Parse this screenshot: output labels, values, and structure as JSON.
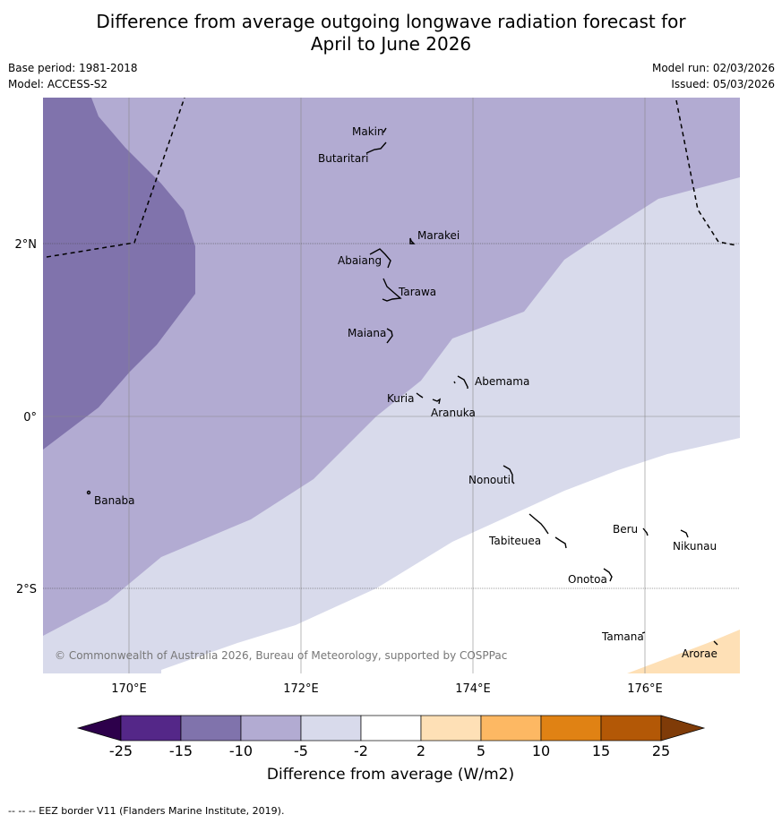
{
  "title_line1": "Difference from average outgoing longwave radiation forecast for",
  "title_line2": "April to June 2026",
  "meta": {
    "base_period": "Base period: 1981-2018",
    "model": "Model: ACCESS-S2",
    "model_run": "Model run: 02/03/2026",
    "issued": "Issued: 05/03/2026"
  },
  "map": {
    "lon_ticks": [
      "170°E",
      "172°E",
      "174°E",
      "176°E"
    ],
    "lat_ticks": [
      "2°N",
      "0°",
      "2°S"
    ],
    "places": [
      "Makin",
      "Butaritari",
      "Marakei",
      "Abaiang",
      "Tarawa",
      "Maiana",
      "Abemama",
      "Kuria",
      "Aranuka",
      "Banaba",
      "Nonouti",
      "Beru",
      "Nikunau",
      "Tabiteuea",
      "Onotoa",
      "Tamana",
      "Arorae"
    ],
    "copyright": "© Commonwealth of Australia 2026, Bureau of Meteorology, supported by COSPPac"
  },
  "colorbar": {
    "ticks": [
      "-25",
      "-15",
      "-10",
      "-5",
      "-2",
      "2",
      "5",
      "10",
      "15",
      "25"
    ],
    "label": "Difference from average (W/m2)",
    "colors": [
      "#2d004b",
      "#542788",
      "#8073ac",
      "#b2abd2",
      "#d8daeb",
      "#ffffff",
      "#fee0b6",
      "#fdb863",
      "#e08214",
      "#b35806",
      "#7f3b08"
    ]
  },
  "footer": "--  --  -- EEZ border V11 (Flanders Marine Institute, 2019)."
}
